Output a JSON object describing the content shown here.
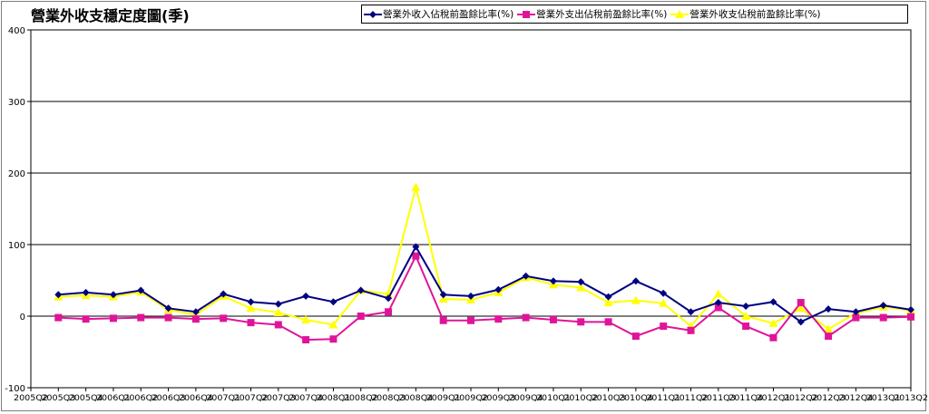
{
  "chart_data": {
    "type": "line",
    "title": "營業外收支穩定度圖(季)",
    "xlabel": "",
    "ylabel": "",
    "ylim": [
      -100,
      400
    ],
    "yticks": [
      -100,
      0,
      100,
      200,
      300,
      400
    ],
    "grid": true,
    "legend_position": "top-right",
    "categories": [
      "2005Q2",
      "2005Q3",
      "2005Q4",
      "2006Q1",
      "2006Q2",
      "2006Q3",
      "2006Q4",
      "2007Q1",
      "2007Q2",
      "2007Q3",
      "2007Q4",
      "2008Q1",
      "2008Q2",
      "2008Q3",
      "2008Q4",
      "2009Q1",
      "2009Q2",
      "2009Q3",
      "2009Q4",
      "2010Q1",
      "2010Q2",
      "2010Q3",
      "2010Q4",
      "2011Q1",
      "2011Q2",
      "2011Q3",
      "2011Q4",
      "2012Q1",
      "2012Q2",
      "2012Q3",
      "2012Q4",
      "2013Q1",
      "2013Q2"
    ],
    "series": [
      {
        "name": "營業外收入佔稅前盈餘比率(%)",
        "color": "#000080",
        "marker": "diamond",
        "values": [
          null,
          30,
          33,
          30,
          36,
          11,
          6,
          31,
          20,
          17,
          28,
          20,
          36,
          25,
          97,
          30,
          28,
          37,
          56,
          49,
          48,
          27,
          49,
          32,
          6,
          19,
          14,
          20,
          -8,
          10,
          6,
          15,
          9
        ]
      },
      {
        "name": "營業外支出佔稅前盈餘比率(%)",
        "color": "#e0149a",
        "marker": "square",
        "values": [
          null,
          -2,
          -4,
          -3,
          -2,
          -2,
          -4,
          -3,
          -9,
          -12,
          -33,
          -32,
          0,
          6,
          84,
          -6,
          -6,
          -4,
          -2,
          -5,
          -8,
          -8,
          -28,
          -14,
          -20,
          12,
          -14,
          -30,
          19,
          -28,
          -2,
          -2,
          -1
        ]
      },
      {
        "name": "營業外收支佔稅前盈餘比率(%)",
        "color": "#ffff00",
        "marker": "triangle",
        "values": [
          null,
          27,
          29,
          27,
          34,
          9,
          2,
          28,
          11,
          5,
          -5,
          -12,
          36,
          31,
          180,
          24,
          23,
          33,
          54,
          44,
          40,
          19,
          22,
          18,
          -14,
          31,
          0,
          -10,
          11,
          -18,
          4,
          13,
          8
        ]
      }
    ]
  }
}
